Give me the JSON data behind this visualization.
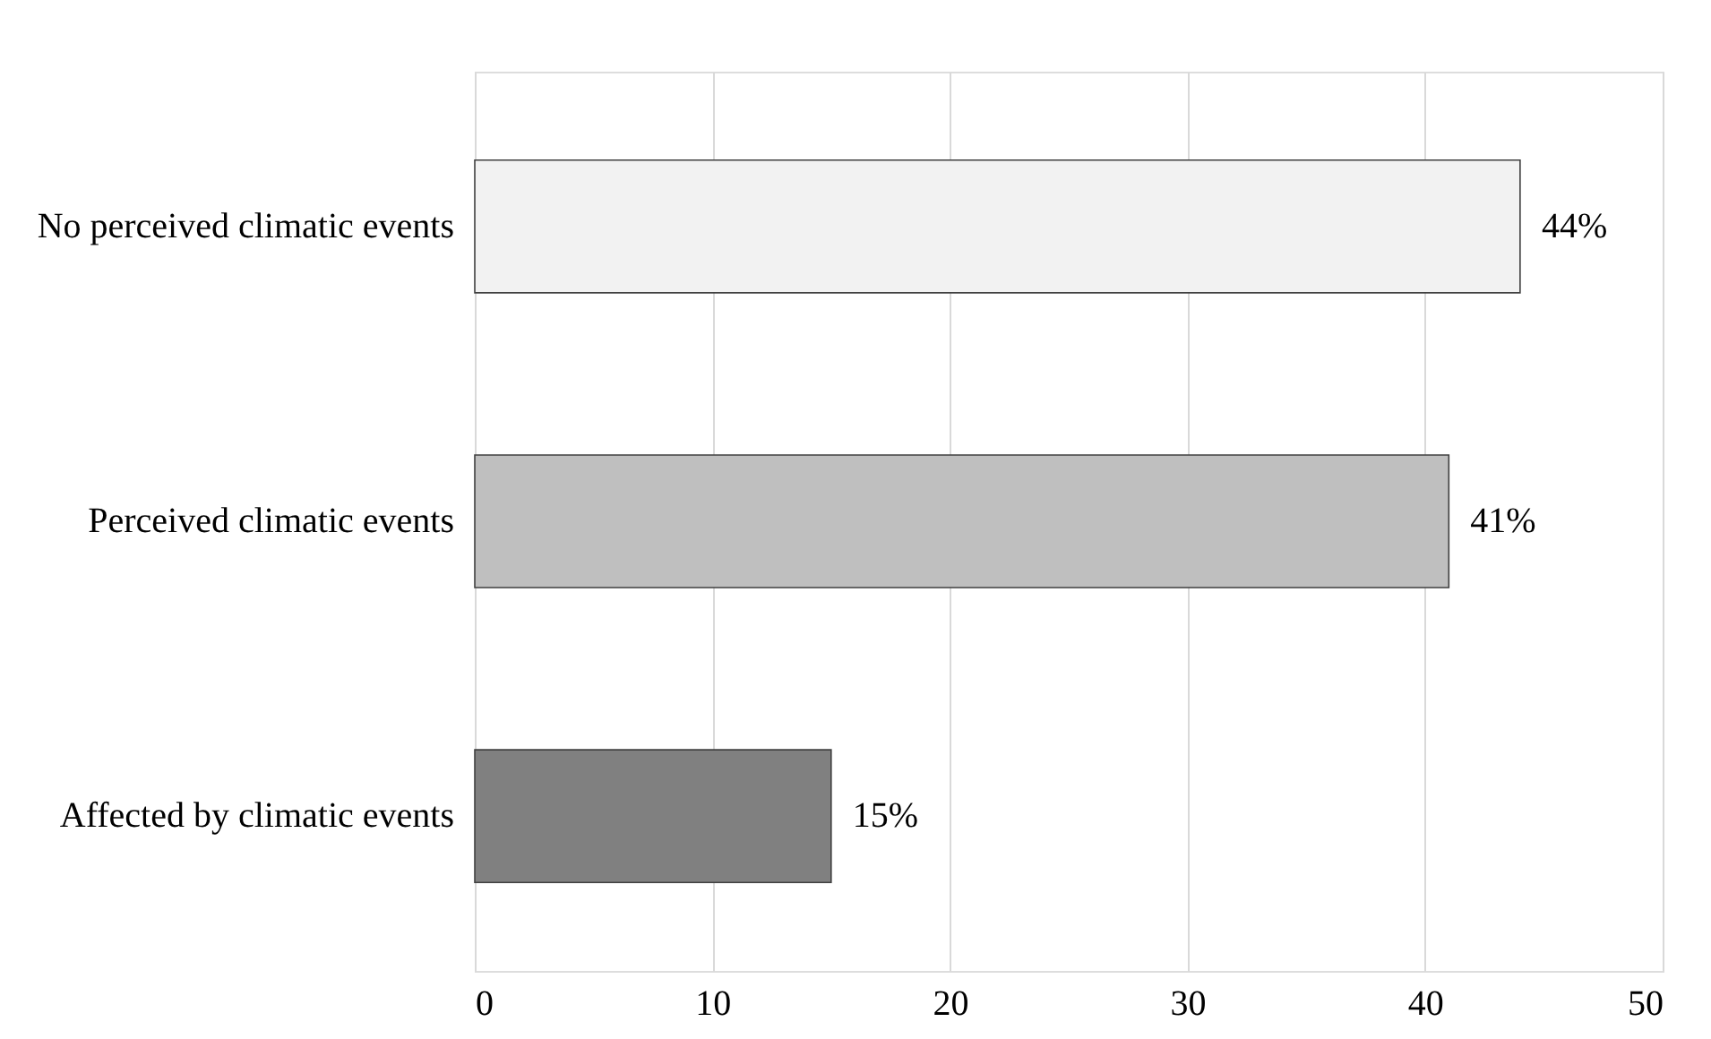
{
  "chart_data": {
    "type": "bar",
    "orientation": "horizontal",
    "categories": [
      "No perceived climatic events",
      "Perceived climatic events",
      "Affected by climatic events"
    ],
    "values": [
      44,
      41,
      15
    ],
    "colors": [
      "#f2f2f2",
      "#bfbfbf",
      "#808080"
    ],
    "value_labels": [
      "44%",
      "41%",
      "15%"
    ],
    "xlim": [
      0,
      50
    ],
    "xticks": [
      0,
      10,
      20,
      30,
      40,
      50
    ],
    "grid": "x"
  }
}
